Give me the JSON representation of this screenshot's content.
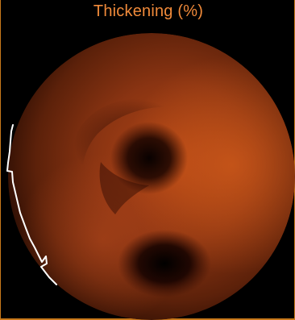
{
  "panel": {
    "title": "Thickening (%)",
    "title_color": "#f08a3a",
    "border_color": "#c9791b",
    "background_color": "#000000"
  },
  "polar_map": {
    "base_color": "#8a3412",
    "highlight_color": "#c55418",
    "shadow_color": "#120300",
    "contour_color": "#ffffff"
  }
}
